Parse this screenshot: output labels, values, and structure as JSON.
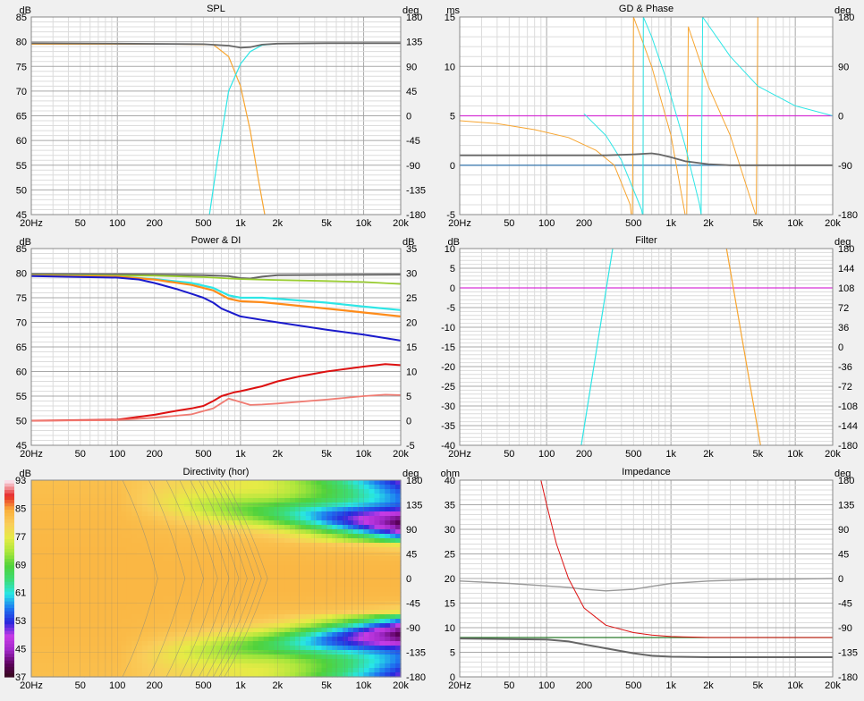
{
  "colors": {
    "background": "#f0f0f0",
    "plot_bg": "#ffffff",
    "grid_major": "#a8a8a8",
    "grid_minor": "#dcdcdc",
    "cyan": "#2ee6e6",
    "orange": "#f7a530",
    "gray_dark": "#666666",
    "gray_light": "#999999",
    "magenta": "#d633d6",
    "steel": "#4682b4",
    "green_light": "#9acd32",
    "orange_di": "#ff8c1a",
    "blue": "#1a1acc",
    "red": "#dd1111",
    "salmon": "#f07b72",
    "dark_green": "#2a7a2a"
  },
  "freq_ticks": [
    "20Hz",
    "50",
    "100",
    "200",
    "500",
    "1k",
    "2k",
    "5k",
    "10k",
    "20k"
  ],
  "chart_data": [
    {
      "id": "spl",
      "type": "line",
      "title": "SPL",
      "ylabel_left": "dB",
      "ylabel_right": "deg",
      "xscale": "log",
      "xlim": [
        20,
        20000
      ],
      "ylim_left": [
        45,
        85
      ],
      "ylim_right": [
        -180,
        180
      ],
      "yticks_left": [
        "85",
        "80",
        "75",
        "70",
        "65",
        "60",
        "55",
        "50",
        "45"
      ],
      "yticks_right": [
        "180",
        "135",
        "90",
        "45",
        "0",
        "-45",
        "-90",
        "-135",
        "-180"
      ],
      "series": [
        {
          "color": "orange",
          "width": 1.2,
          "x": [
            20,
            100,
            300,
            600,
            800,
            1000,
            1200,
            1400,
            1600
          ],
          "y": [
            79.5,
            79.5,
            79.5,
            79.4,
            77,
            71,
            62,
            52,
            44
          ]
        },
        {
          "color": "cyan",
          "width": 1.2,
          "x": [
            560,
            650,
            800,
            1000,
            1200,
            1500,
            2000,
            5000,
            20000
          ],
          "y": [
            45,
            56,
            70,
            75.5,
            78,
            79.3,
            79.6,
            79.7,
            79.7
          ]
        },
        {
          "color": "gray_dark",
          "width": 1.8,
          "x": [
            20,
            100,
            500,
            800,
            1000,
            1200,
            1500,
            2000,
            5000,
            20000
          ],
          "y": [
            79.7,
            79.6,
            79.5,
            79.2,
            78.8,
            78.9,
            79.4,
            79.6,
            79.7,
            79.7
          ]
        }
      ]
    },
    {
      "id": "gd",
      "type": "line",
      "title": "GD & Phase",
      "ylabel_left": "ms",
      "ylabel_right": "deg",
      "xscale": "log",
      "xlim": [
        20,
        20000
      ],
      "ylim_left": [
        -5,
        15
      ],
      "ylim_right": [
        -180,
        180
      ],
      "yticks_left": [
        "15",
        "10",
        "5",
        "0",
        "-5"
      ],
      "yticks_right": [
        "180",
        "90",
        "0",
        "-90",
        "-180"
      ],
      "series": [
        {
          "color": "magenta",
          "width": 1.3,
          "x": [
            20,
            20000
          ],
          "y": [
            5,
            5
          ]
        },
        {
          "color": "steel",
          "width": 1.3,
          "x": [
            20,
            20000
          ],
          "y": [
            0,
            0
          ]
        },
        {
          "color": "orange",
          "width": 1,
          "x": [
            20,
            40,
            80,
            150,
            250,
            350,
            470,
            480,
            490
          ],
          "y": [
            4.5,
            4.2,
            3.6,
            2.8,
            1.5,
            0,
            -4,
            -5,
            -5
          ]
        },
        {
          "color": "orange",
          "width": 1,
          "x": [
            490,
            500,
            700,
            1000,
            1300,
            1340
          ],
          "y": [
            -5,
            15,
            10,
            3,
            -5,
            -5
          ]
        },
        {
          "color": "orange",
          "width": 1,
          "x": [
            1340,
            1380,
            2000,
            3000,
            4800,
            4850
          ],
          "y": [
            -5,
            14,
            8,
            3,
            -5,
            -5
          ]
        },
        {
          "color": "orange",
          "width": 1,
          "x": [
            4850,
            5000,
            5050
          ],
          "y": [
            -5,
            15,
            15
          ]
        },
        {
          "color": "cyan",
          "width": 1,
          "x": [
            200,
            300,
            400,
            580,
            590
          ],
          "y": [
            5.2,
            3,
            0.5,
            -4.5,
            -5
          ]
        },
        {
          "color": "cyan",
          "width": 1,
          "x": [
            595,
            600,
            700,
            900,
            1300,
            1700,
            1750
          ],
          "y": [
            -5,
            15,
            13,
            9,
            2,
            -4,
            -5
          ]
        },
        {
          "color": "cyan",
          "width": 1,
          "x": [
            1750,
            1800,
            3000,
            5000,
            10000,
            20000
          ],
          "y": [
            -5,
            15,
            11,
            8,
            6,
            5
          ]
        },
        {
          "color": "gray_dark",
          "width": 1.8,
          "x": [
            20,
            100,
            300,
            500,
            700,
            800,
            1000,
            1300,
            2000,
            3000,
            20000
          ],
          "y": [
            1,
            1,
            1,
            1.1,
            1.2,
            1.1,
            0.8,
            0.4,
            0.1,
            0,
            0
          ]
        }
      ]
    },
    {
      "id": "power",
      "type": "line",
      "title": "Power & DI",
      "ylabel_left": "dB",
      "ylabel_right": "dB",
      "xscale": "log",
      "xlim": [
        20,
        20000
      ],
      "ylim_left": [
        45,
        85
      ],
      "ylim_right": [
        -5,
        35
      ],
      "yticks_left": [
        "85",
        "80",
        "75",
        "70",
        "65",
        "60",
        "55",
        "50",
        "45"
      ],
      "yticks_right": [
        "35",
        "30",
        "25",
        "20",
        "15",
        "10",
        "5",
        "0",
        "-5"
      ],
      "series": [
        {
          "color": "gray_dark",
          "width": 2,
          "x": [
            20,
            200,
            500,
            800,
            1000,
            1200,
            1500,
            2000,
            20000
          ],
          "y": [
            79.8,
            79.7,
            79.6,
            79.4,
            79,
            78.9,
            79.3,
            79.6,
            79.7
          ]
        },
        {
          "color": "green_light",
          "width": 1.8,
          "x": [
            20,
            200,
            500,
            1000,
            2000,
            5000,
            10000,
            20000
          ],
          "y": [
            79.6,
            79.5,
            79.2,
            78.8,
            78.6,
            78.4,
            78.2,
            77.8
          ]
        },
        {
          "color": "cyan",
          "width": 2.2,
          "x": [
            20,
            100,
            200,
            400,
            600,
            800,
            1000,
            1500,
            2000,
            5000,
            10000,
            20000
          ],
          "y": [
            79.5,
            79.3,
            78.8,
            78,
            77,
            75.5,
            75,
            75,
            74.8,
            74,
            73.2,
            72.5
          ]
        },
        {
          "color": "orange_di",
          "width": 2.2,
          "x": [
            20,
            100,
            200,
            400,
            600,
            800,
            1000,
            1500,
            2000,
            5000,
            10000,
            20000
          ],
          "y": [
            79.5,
            79.3,
            78.7,
            77.6,
            76.5,
            74.8,
            74.3,
            74.1,
            73.8,
            72.8,
            72,
            71.2
          ]
        },
        {
          "color": "blue",
          "width": 2,
          "x": [
            20,
            100,
            150,
            200,
            300,
            400,
            500,
            600,
            700,
            1000,
            1500,
            2000,
            5000,
            10000,
            20000
          ],
          "y": [
            79.4,
            79.1,
            78.7,
            78,
            76.8,
            75.8,
            75,
            74,
            72.8,
            71.2,
            70.5,
            70,
            68.5,
            67.5,
            66.3
          ]
        },
        {
          "color": "red",
          "width": 2,
          "x": [
            20,
            100,
            150,
            200,
            300,
            400,
            500,
            600,
            700,
            900,
            1000,
            1500,
            2000,
            3000,
            5000,
            10000,
            15000,
            20000
          ],
          "y": [
            50,
            50.2,
            50.8,
            51.2,
            52,
            52.5,
            53,
            54,
            55,
            55.8,
            56,
            57,
            58,
            59,
            60,
            61,
            61.5,
            61.3
          ]
        },
        {
          "color": "salmon",
          "width": 1.8,
          "x": [
            20,
            100,
            200,
            400,
            600,
            800,
            1000,
            1200,
            1500,
            2000,
            5000,
            10000,
            15000,
            20000
          ],
          "y": [
            50,
            50.1,
            50.6,
            51.3,
            52.5,
            54.5,
            53.8,
            53.2,
            53.3,
            53.5,
            54.3,
            55,
            55.3,
            55.2
          ]
        }
      ]
    },
    {
      "id": "filter",
      "type": "line",
      "title": "Filter",
      "ylabel_left": "dB",
      "ylabel_right": "deg",
      "xscale": "log",
      "xlim": [
        20,
        20000
      ],
      "ylim_left": [
        -40,
        10
      ],
      "ylim_right": [
        -180,
        180
      ],
      "yticks_left": [
        "10",
        "5",
        "0",
        "-5",
        "-10",
        "-15",
        "-20",
        "-25",
        "-30",
        "-35",
        "-40"
      ],
      "yticks_right": [
        "180",
        "144",
        "108",
        "72",
        "36",
        "0",
        "-36",
        "-72",
        "-108",
        "-144",
        "-180"
      ],
      "series": [
        {
          "color": "magenta",
          "width": 1.3,
          "x": [
            20,
            20000
          ],
          "y": [
            0,
            0
          ]
        },
        {
          "color": "cyan",
          "width": 1.2,
          "x": [
            190,
            340
          ],
          "y": [
            -40,
            10
          ]
        },
        {
          "color": "orange",
          "width": 1.2,
          "x": [
            2800,
            5250
          ],
          "y": [
            10,
            -40
          ]
        }
      ]
    },
    {
      "id": "directivity",
      "type": "heatmap",
      "title": "Directivity (hor)",
      "ylabel_left": "dB",
      "ylabel_right": "deg",
      "xscale": "log",
      "xlim": [
        20,
        20000
      ],
      "ylim_right": [
        -180,
        180
      ],
      "colorbar_ticks": [
        "93",
        "85",
        "77",
        "69",
        "61",
        "53",
        "45",
        "37"
      ],
      "yticks_right": [
        "180",
        "135",
        "90",
        "45",
        "0",
        "-45",
        "-90",
        "-135",
        "-180"
      ]
    },
    {
      "id": "impedance",
      "type": "line",
      "title": "Impedance",
      "ylabel_left": "ohm",
      "ylabel_right": "deg",
      "xscale": "log",
      "xlim": [
        20,
        20000
      ],
      "ylim_left": [
        0,
        40
      ],
      "ylim_right": [
        -180,
        180
      ],
      "yticks_left": [
        "40",
        "35",
        "30",
        "25",
        "20",
        "15",
        "10",
        "5",
        "0"
      ],
      "yticks_right": [
        "180",
        "135",
        "90",
        "45",
        "0",
        "-45",
        "-90",
        "-135",
        "-180"
      ],
      "series": [
        {
          "color": "dark_green",
          "width": 1.3,
          "x": [
            20,
            20000
          ],
          "y": [
            8,
            8
          ]
        },
        {
          "color": "gray_light",
          "width": 1.4,
          "x": [
            20,
            50,
            100,
            150,
            200,
            300,
            500,
            700,
            1000,
            2000,
            5000,
            20000
          ],
          "y": [
            19.5,
            19,
            18.5,
            18.2,
            17.8,
            17.5,
            17.8,
            18.4,
            19,
            19.5,
            19.8,
            20
          ]
        },
        {
          "color": "red",
          "width": 1,
          "x": [
            90,
            100,
            120,
            150,
            200,
            300,
            500,
            700,
            1000,
            1500,
            2000,
            3000,
            20000
          ],
          "y": [
            40,
            35,
            27,
            20,
            14,
            10.5,
            9,
            8.5,
            8.2,
            8.1,
            8,
            8,
            8
          ]
        },
        {
          "color": "gray_dark",
          "width": 2,
          "x": [
            20,
            100,
            150,
            200,
            300,
            500,
            700,
            1000,
            2000,
            5000,
            20000
          ],
          "y": [
            7.8,
            7.6,
            7.2,
            6.6,
            5.8,
            4.8,
            4.3,
            4.1,
            4,
            4,
            4
          ]
        }
      ]
    }
  ]
}
